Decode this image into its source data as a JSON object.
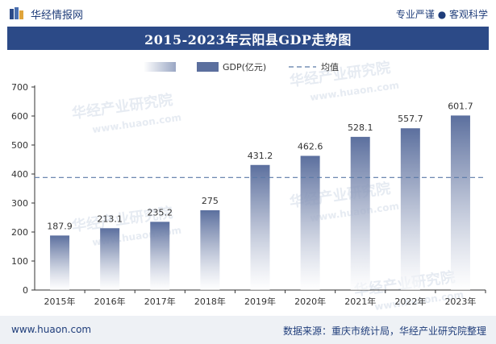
{
  "header": {
    "brand": "华经情报网",
    "slogan": "专业严谨 ● 客观科学"
  },
  "title": "2015-2023年云阳县GDP走势图",
  "legend": {
    "bar_label": "GDP(亿元)",
    "line_label": "均值"
  },
  "watermark": {
    "text": "华经产业研究院",
    "url": "www.huaon.com"
  },
  "footer": {
    "site": "www.huaon.com",
    "source": "数据来源：重庆市统计局，华经产业研究院整理"
  },
  "colors": {
    "bar_top": "#5b6f9e",
    "bar_fade": "#ffffff",
    "title_bg": "#2c4a87",
    "mean_line": "#5a7aa8"
  },
  "chart_data": {
    "type": "bar",
    "categories": [
      "2015年",
      "2016年",
      "2017年",
      "2018年",
      "2019年",
      "2020年",
      "2021年",
      "2022年",
      "2023年"
    ],
    "series": [
      {
        "name": "GDP(亿元)",
        "values": [
          187.9,
          213.1,
          235.2,
          275,
          431.2,
          462.6,
          528.1,
          557.7,
          601.7
        ]
      }
    ],
    "value_labels": [
      "187.9",
      "213.1",
      "235.2",
      "275",
      "431.2",
      "462.6",
      "528.1",
      "557.7",
      "601.7"
    ],
    "mean": 388.06,
    "ylim": [
      0,
      700
    ],
    "yticks": [
      0,
      100,
      200,
      300,
      400,
      500,
      600,
      700
    ],
    "grid": false,
    "legend_position": "top-center"
  }
}
